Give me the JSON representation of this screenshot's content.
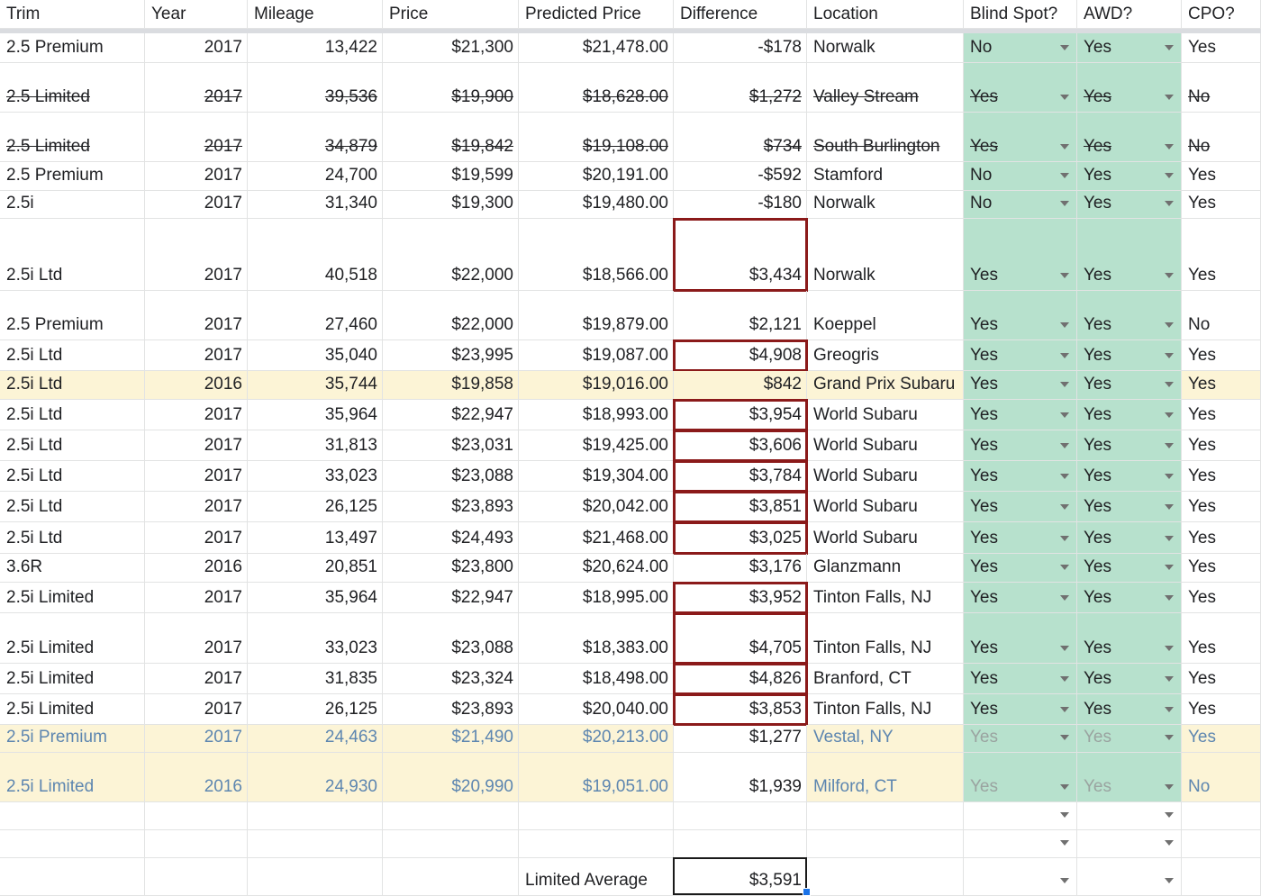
{
  "columns": [
    "Trim",
    "Year",
    "Mileage",
    "Price",
    "Predicted Price",
    "Difference",
    "Location",
    "Blind Spot?",
    "AWD?",
    "CPO?"
  ],
  "rows": [
    {
      "trim": "2.5 Premium",
      "year": "2017",
      "mileage": "13,422",
      "price": "$21,300",
      "predicted": "$21,478.00",
      "difference": "-$178",
      "location": "Norwalk",
      "blind_spot": "No",
      "awd": "Yes",
      "cpo": "Yes"
    },
    {
      "trim": "2.5 Limited",
      "year": "2017",
      "mileage": "39,536",
      "price": "$19,900",
      "predicted": "$18,628.00",
      "difference": "$1,272",
      "location": "Valley Stream",
      "blind_spot": "Yes",
      "awd": "Yes",
      "cpo": "No",
      "strike": true
    },
    {
      "trim": "2.5 Limited",
      "year": "2017",
      "mileage": "34,879",
      "price": "$19,842",
      "predicted": "$19,108.00",
      "difference": "$734",
      "location": "South Burlington",
      "blind_spot": "Yes",
      "awd": "Yes",
      "cpo": "No",
      "strike": true
    },
    {
      "trim": "2.5 Premium",
      "year": "2017",
      "mileage": "24,700",
      "price": "$19,599",
      "predicted": "$20,191.00",
      "difference": "-$592",
      "location": "Stamford",
      "blind_spot": "No",
      "awd": "Yes",
      "cpo": "Yes"
    },
    {
      "trim": "2.5i",
      "year": "2017",
      "mileage": "31,340",
      "price": "$19,300",
      "predicted": "$19,480.00",
      "difference": "-$180",
      "location": "Norwalk",
      "blind_spot": "No",
      "awd": "Yes",
      "cpo": "Yes"
    },
    {
      "trim": "2.5i Ltd",
      "year": "2017",
      "mileage": "40,518",
      "price": "$22,000",
      "predicted": "$18,566.00",
      "difference": "$3,434",
      "location": "Norwalk",
      "blind_spot": "Yes",
      "awd": "Yes",
      "cpo": "Yes",
      "outlined": true
    },
    {
      "trim": "2.5 Premium",
      "year": "2017",
      "mileage": "27,460",
      "price": "$22,000",
      "predicted": "$19,879.00",
      "difference": "$2,121",
      "location": "Koeppel",
      "blind_spot": "Yes",
      "awd": "Yes",
      "cpo": "No"
    },
    {
      "trim": "2.5i Ltd",
      "year": "2017",
      "mileage": "35,040",
      "price": "$23,995",
      "predicted": "$19,087.00",
      "difference": "$4,908",
      "location": "Greogris",
      "blind_spot": "Yes",
      "awd": "Yes",
      "cpo": "Yes",
      "outlined": true
    },
    {
      "trim": "2.5i Ltd",
      "year": "2016",
      "mileage": "35,744",
      "price": "$19,858",
      "predicted": "$19,016.00",
      "difference": "$842",
      "location": "Grand Prix Subaru",
      "blind_spot": "Yes",
      "awd": "Yes",
      "cpo": "Yes",
      "highlight": "full"
    },
    {
      "trim": "2.5i Ltd",
      "year": "2017",
      "mileage": "35,964",
      "price": "$22,947",
      "predicted": "$18,993.00",
      "difference": "$3,954",
      "location": "World Subaru",
      "blind_spot": "Yes",
      "awd": "Yes",
      "cpo": "Yes",
      "outlined": true
    },
    {
      "trim": "2.5i Ltd",
      "year": "2017",
      "mileage": "31,813",
      "price": "$23,031",
      "predicted": "$19,425.00",
      "difference": "$3,606",
      "location": "World Subaru",
      "blind_spot": "Yes",
      "awd": "Yes",
      "cpo": "Yes",
      "outlined": true
    },
    {
      "trim": "2.5i Ltd",
      "year": "2017",
      "mileage": "33,023",
      "price": "$23,088",
      "predicted": "$19,304.00",
      "difference": "$3,784",
      "location": "World Subaru",
      "blind_spot": "Yes",
      "awd": "Yes",
      "cpo": "Yes",
      "outlined": true
    },
    {
      "trim": "2.5i Ltd",
      "year": "2017",
      "mileage": "26,125",
      "price": "$23,893",
      "predicted": "$20,042.00",
      "difference": "$3,851",
      "location": "World Subaru",
      "blind_spot": "Yes",
      "awd": "Yes",
      "cpo": "Yes",
      "outlined": true
    },
    {
      "trim": "2.5i Ltd",
      "year": "2017",
      "mileage": "13,497",
      "price": "$24,493",
      "predicted": "$21,468.00",
      "difference": "$3,025",
      "location": "World Subaru",
      "blind_spot": "Yes",
      "awd": "Yes",
      "cpo": "Yes",
      "outlined": true
    },
    {
      "trim": "3.6R",
      "year": "2016",
      "mileage": "20,851",
      "price": "$23,800",
      "predicted": "$20,624.00",
      "difference": "$3,176",
      "location": "Glanzmann",
      "blind_spot": "Yes",
      "awd": "Yes",
      "cpo": "Yes"
    },
    {
      "trim": "2.5i Limited",
      "year": "2017",
      "mileage": "35,964",
      "price": "$22,947",
      "predicted": "$18,995.00",
      "difference": "$3,952",
      "location": "Tinton Falls, NJ",
      "blind_spot": "Yes",
      "awd": "Yes",
      "cpo": "Yes",
      "outlined": true
    },
    {
      "trim": "2.5i Limited",
      "year": "2017",
      "mileage": "33,023",
      "price": "$23,088",
      "predicted": "$18,383.00",
      "difference": "$4,705",
      "location": "Tinton Falls, NJ",
      "blind_spot": "Yes",
      "awd": "Yes",
      "cpo": "Yes",
      "outlined": true
    },
    {
      "trim": "2.5i Limited",
      "year": "2017",
      "mileage": "31,835",
      "price": "$23,324",
      "predicted": "$18,498.00",
      "difference": "$4,826",
      "location": "Branford, CT",
      "blind_spot": "Yes",
      "awd": "Yes",
      "cpo": "Yes",
      "outlined": true
    },
    {
      "trim": "2.5i Limited",
      "year": "2017",
      "mileage": "26,125",
      "price": "$23,893",
      "predicted": "$20,040.00",
      "difference": "$3,853",
      "location": "Tinton Falls, NJ",
      "blind_spot": "Yes",
      "awd": "Yes",
      "cpo": "Yes",
      "outlined": true
    },
    {
      "trim": "2.5i Premium",
      "year": "2017",
      "mileage": "24,463",
      "price": "$21,490",
      "predicted": "$20,213.00",
      "difference": "$1,277",
      "location": "Vestal, NY",
      "blind_spot": "Yes",
      "awd": "Yes",
      "cpo": "Yes",
      "highlight": "faded"
    },
    {
      "trim": "2.5i Limited",
      "year": "2016",
      "mileage": "24,930",
      "price": "$20,990",
      "predicted": "$19,051.00",
      "difference": "$1,939",
      "location": "Milford, CT",
      "blind_spot": "Yes",
      "awd": "Yes",
      "cpo": "No",
      "highlight": "faded"
    }
  ],
  "summary": {
    "label": "Limited Average",
    "value": "$3,591"
  },
  "colors": {
    "green": "#b7e1cd",
    "yellow": "#fcf4d6",
    "outline": "#8b1a1a",
    "faded_text": "#5d86b0"
  }
}
